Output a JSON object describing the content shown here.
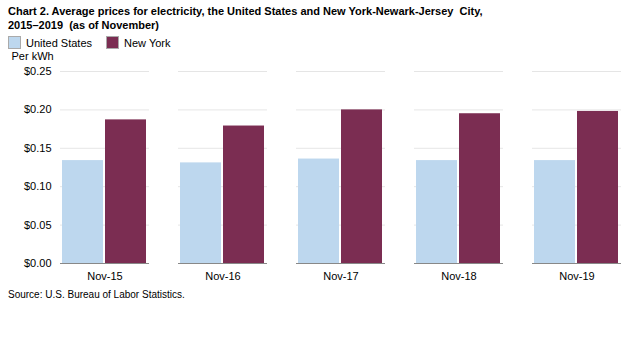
{
  "chart_data": {
    "type": "bar",
    "title": "Chart 2. Average prices for electricity, the United States and New York-Newark-Jersey  City,",
    "subtitle": "2015–2019  (as of November)",
    "ylabel": "Per kWh",
    "source": "Source: U.S. Bureau of Labor Statistics.",
    "categories": [
      "Nov-15",
      "Nov-16",
      "Nov-17",
      "Nov-18",
      "Nov-19"
    ],
    "series": [
      {
        "name": "United States",
        "color": "#BDD7EE",
        "values": [
          0.134,
          0.131,
          0.136,
          0.134,
          0.134
        ]
      },
      {
        "name": "New York",
        "color": "#7B2D52",
        "values": [
          0.187,
          0.179,
          0.2,
          0.195,
          0.198
        ]
      }
    ],
    "ylim": [
      0.0,
      0.25
    ],
    "yticks": [
      {
        "value": 0.0,
        "label": "$0.00"
      },
      {
        "value": 0.05,
        "label": "$0.05"
      },
      {
        "value": 0.1,
        "label": "$0.10"
      },
      {
        "value": 0.15,
        "label": "$0.15"
      },
      {
        "value": 0.2,
        "label": "$0.20"
      },
      {
        "value": 0.25,
        "label": "$0.25"
      }
    ],
    "grid": true,
    "legend": "upper left"
  }
}
